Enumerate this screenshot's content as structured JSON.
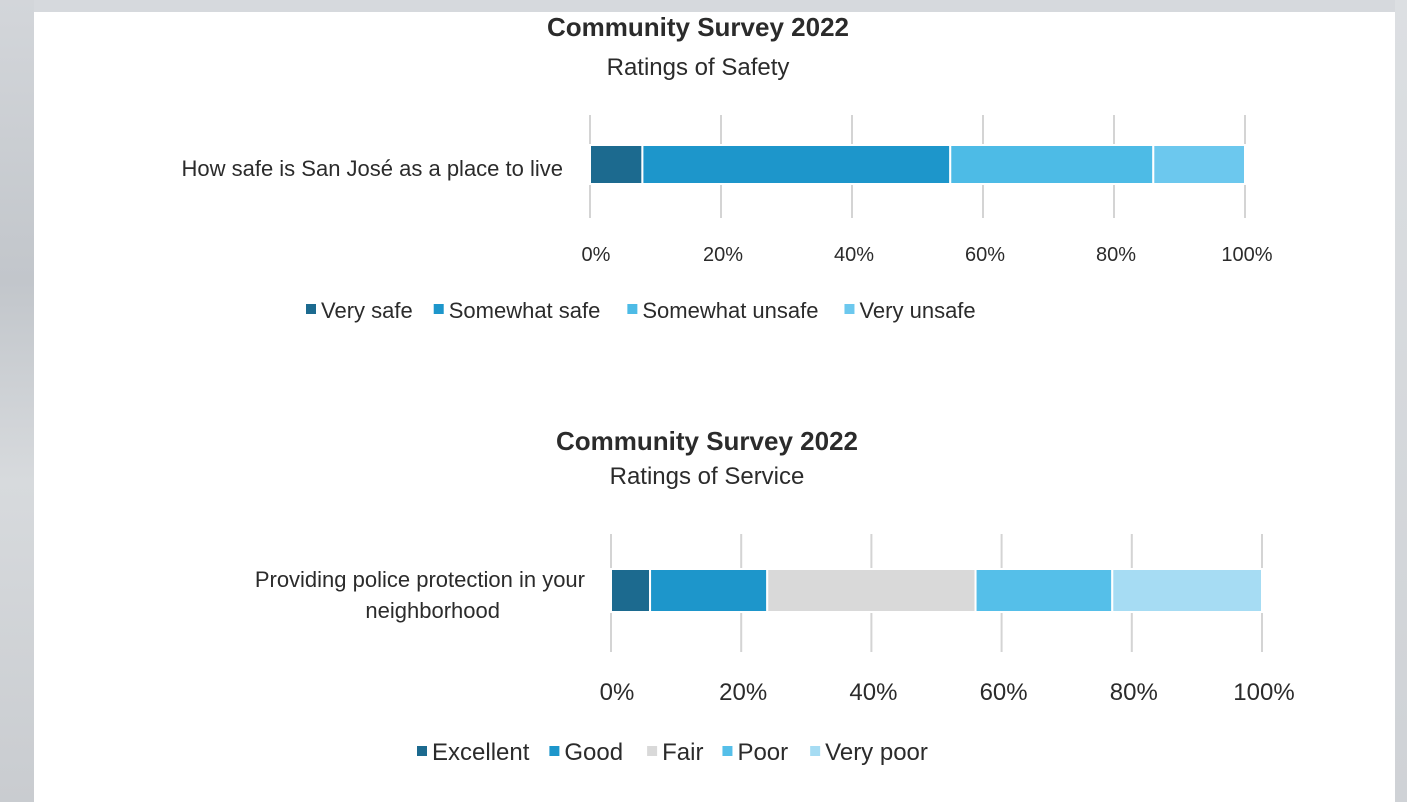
{
  "chart_data": [
    {
      "type": "bar",
      "orientation": "horizontal",
      "stacked": true,
      "title": "Community Survey 2022",
      "subtitle": "Ratings of Safety",
      "categories": [
        "How safe is San José as a place to live"
      ],
      "series": [
        {
          "name": "Very safe",
          "values": [
            8
          ],
          "color": "#1c6a8f"
        },
        {
          "name": "Somewhat safe",
          "values": [
            47
          ],
          "color": "#1d96cb"
        },
        {
          "name": "Somewhat unsafe",
          "values": [
            31
          ],
          "color": "#4dbbe6"
        },
        {
          "name": "Very unsafe",
          "values": [
            14
          ],
          "color": "#6cc8ee"
        }
      ],
      "xlim": [
        0,
        100
      ],
      "ticks": [
        0,
        20,
        40,
        60,
        80,
        100
      ],
      "tick_labels": [
        "0%",
        "20%",
        "40%",
        "60%",
        "80%",
        "100%"
      ],
      "grid": true,
      "legend": "bottom"
    },
    {
      "type": "bar",
      "orientation": "horizontal",
      "stacked": true,
      "title": "Community Survey 2022",
      "subtitle": "Ratings of Service",
      "categories": [
        "Providing police protection in your neighborhood"
      ],
      "series": [
        {
          "name": "Excellent",
          "values": [
            6
          ],
          "color": "#1c6a8f"
        },
        {
          "name": "Good",
          "values": [
            18
          ],
          "color": "#1d96cb"
        },
        {
          "name": "Fair",
          "values": [
            32
          ],
          "color": "#d9d9d9"
        },
        {
          "name": "Poor",
          "values": [
            21
          ],
          "color": "#55bfe9"
        },
        {
          "name": "Very poor",
          "values": [
            23
          ],
          "color": "#a6dcf3"
        }
      ],
      "xlim": [
        0,
        100
      ],
      "ticks": [
        0,
        20,
        40,
        60,
        80,
        100
      ],
      "tick_labels": [
        "0%",
        "20%",
        "40%",
        "60%",
        "80%",
        "100%"
      ],
      "grid": true,
      "legend": "bottom"
    }
  ]
}
